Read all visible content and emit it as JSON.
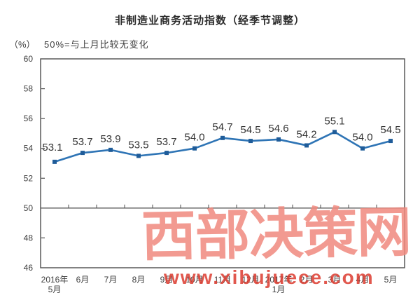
{
  "title": "非制造业商务活动指数（经季节调整）",
  "unit_label": "（%）",
  "note": "50%=与上月比较无变化",
  "watermark": {
    "text": "西部决策网",
    "url": "www.xibujuece.com",
    "text_color": "#F0897E",
    "url_color": "#DC3C30"
  },
  "chart_data": {
    "type": "line",
    "title": "非制造业商务活动指数（经季节调整）",
    "xlabel": "",
    "ylabel": "（%）",
    "categories": [
      "2016年\n5月",
      "6月",
      "7月",
      "8月",
      "9月",
      "10月",
      "11月",
      "12月",
      "2017年\n1月",
      "2月",
      "3月",
      "4月",
      "5月"
    ],
    "values": [
      53.1,
      53.7,
      53.9,
      53.5,
      53.7,
      54.0,
      54.7,
      54.5,
      54.6,
      54.2,
      55.1,
      54.0,
      54.5
    ],
    "ylim": [
      46,
      60
    ],
    "ytick_step": 2,
    "yticks": [
      46,
      48,
      50,
      52,
      54,
      56,
      58,
      60
    ],
    "reference_line": 50,
    "grid": false,
    "legend_position": "none",
    "line_color": "#2E74B5",
    "marker_color": "#1F5C99",
    "axis_color": "#4d4d4d"
  }
}
